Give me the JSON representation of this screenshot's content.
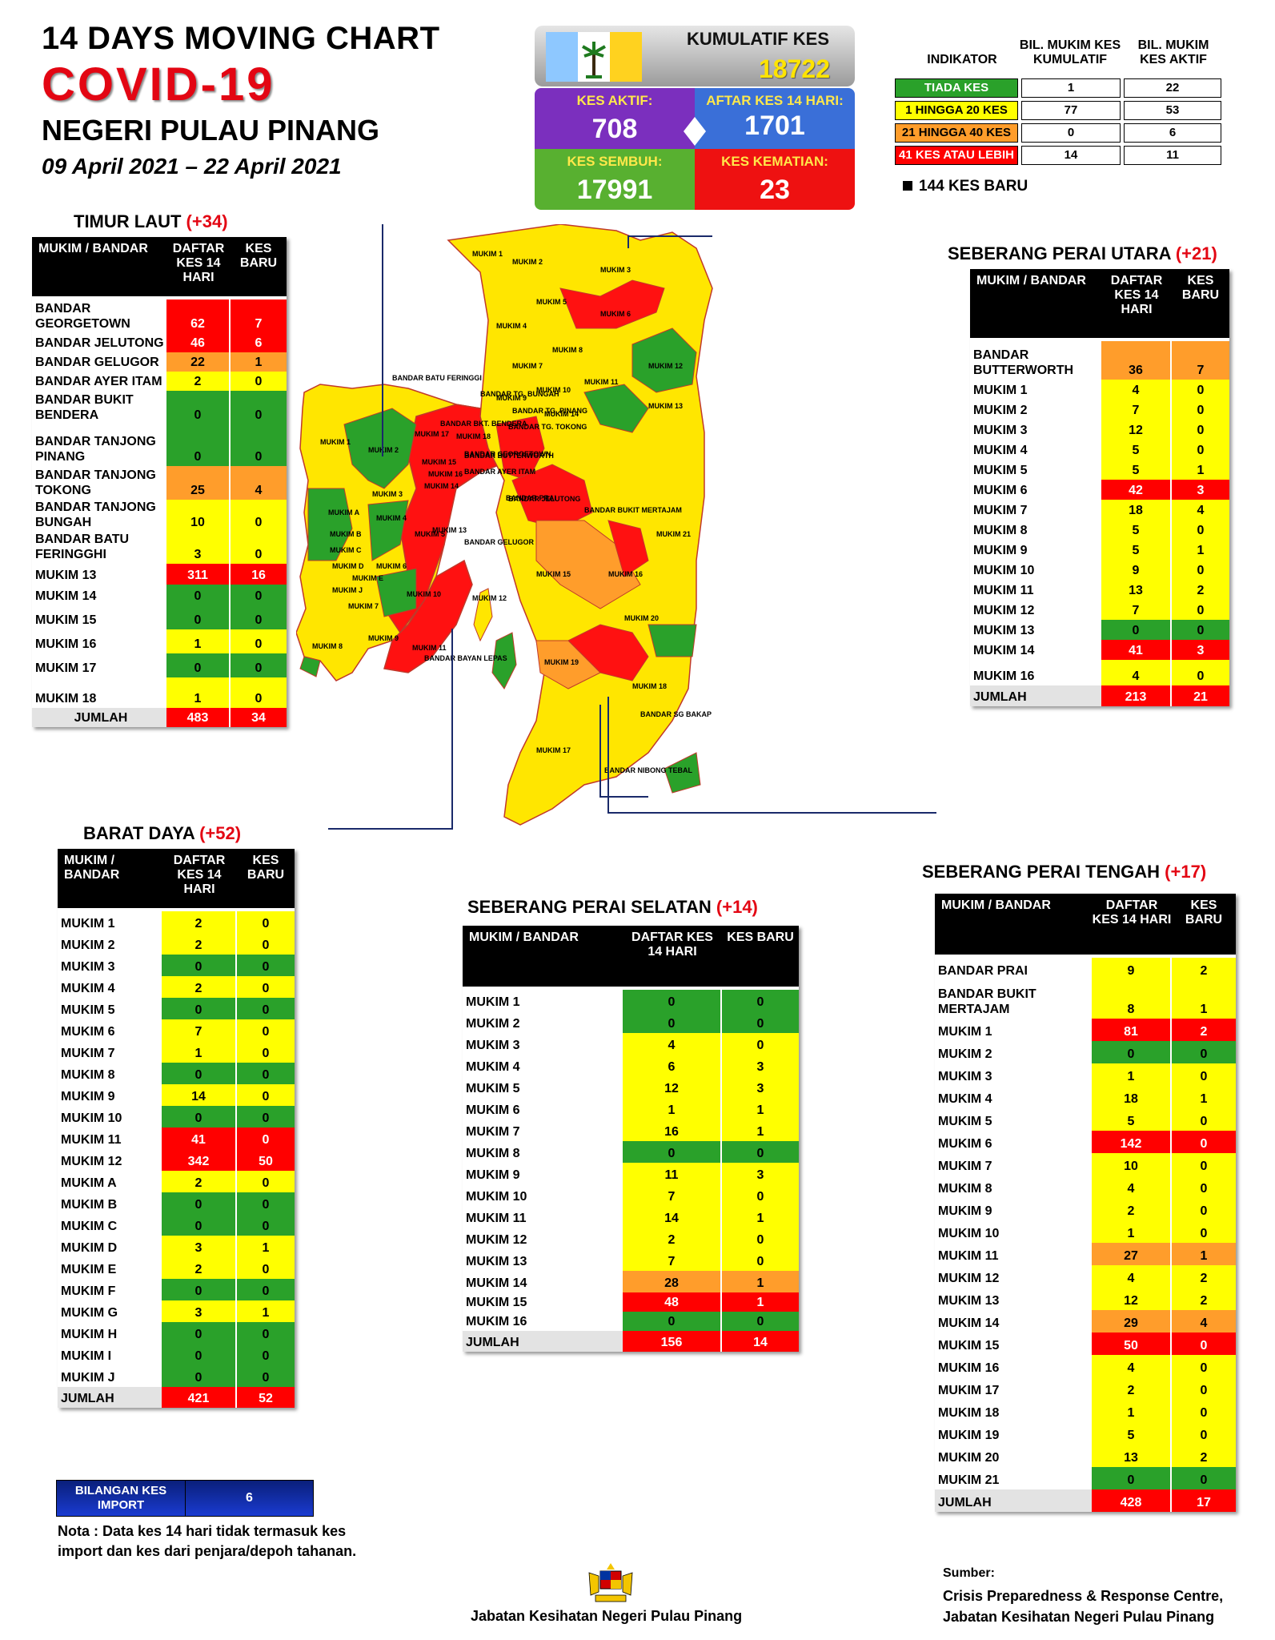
{
  "header": {
    "title": "14  DAYS MOVING CHART",
    "covid": "COVID-19",
    "state": "NEGERI PULAU PINANG",
    "dates": "09 April 2021 – 22 April 2021"
  },
  "summary": {
    "kumulatif_label": "KUMULATIF KES",
    "kumulatif_value": "18722",
    "aktif_label": "KES AKTIF:",
    "aktif_value": "708",
    "aftar_label": "AFTAR KES 14 HARI:",
    "aftar_value": "1701",
    "sembuh_label": "KES SEMBUH:",
    "sembuh_value": "17991",
    "kematian_label": "KES KEMATIAN:",
    "kematian_value": "23",
    "colors": {
      "aktif": "#7b2fbe",
      "aftar": "#3a6fd8",
      "sembuh": "#58b030",
      "kematian": "#ee1111"
    }
  },
  "indicator": {
    "h1": "INDIKATOR",
    "h2": "BIL. MUKIM KES KUMULATIF",
    "h3": "BIL. MUKIM KES AKTIF",
    "rows": [
      {
        "label": "TIADA KES",
        "kum": "1",
        "akt": "22",
        "color": "green"
      },
      {
        "label": "1 HINGGA 20 KES",
        "kum": "77",
        "akt": "53",
        "color": "yellow"
      },
      {
        "label": "21 HINGGA 40 KES",
        "kum": "0",
        "akt": "6",
        "color": "orange"
      },
      {
        "label": "41 KES ATAU LEBIH",
        "kum": "14",
        "akt": "11",
        "color": "red"
      }
    ],
    "new_cases": "144 KES BARU"
  },
  "headers": {
    "mukim_bandar": "MUKIM / BANDAR",
    "daftar": "DAFTAR KES 14 HARI",
    "baru": "KES BARU"
  },
  "tables": {
    "timur_laut": {
      "title": "TIMUR LAUT",
      "plus": "(+34)",
      "rows": [
        {
          "name": "BANDAR GEORGETOWN",
          "d": "62",
          "b": "7",
          "dc": "red",
          "bc": "red"
        },
        {
          "name": "BANDAR JELUTONG",
          "d": "46",
          "b": "6",
          "dc": "red",
          "bc": "red"
        },
        {
          "name": "BANDAR GELUGOR",
          "d": "22",
          "b": "1",
          "dc": "orange",
          "bc": "orange"
        },
        {
          "name": "BANDAR AYER ITAM",
          "d": "2",
          "b": "0",
          "dc": "yellow",
          "bc": "yellow"
        },
        {
          "name": "BANDAR BUKIT BENDERA",
          "d": "0",
          "b": "0",
          "dc": "green",
          "bc": "green"
        },
        {
          "name": "BANDAR TANJONG PINANG",
          "d": "0",
          "b": "0",
          "dc": "green",
          "bc": "green"
        },
        {
          "name": "BANDAR TANJONG TOKONG",
          "d": "25",
          "b": "4",
          "dc": "orange",
          "bc": "orange"
        },
        {
          "name": "BANDAR TANJONG BUNGAH",
          "d": "10",
          "b": "0",
          "dc": "yellow",
          "bc": "yellow"
        },
        {
          "name": "BANDAR BATU FERINGGHI",
          "d": "3",
          "b": "0",
          "dc": "yellow",
          "bc": "yellow"
        },
        {
          "name": "MUKIM 13",
          "d": "311",
          "b": "16",
          "dc": "red",
          "bc": "red"
        },
        {
          "name": "MUKIM 14",
          "d": "0",
          "b": "0",
          "dc": "green",
          "bc": "green"
        },
        {
          "name": "MUKIM 15",
          "d": "0",
          "b": "0",
          "dc": "green",
          "bc": "green"
        },
        {
          "name": "MUKIM 16",
          "d": "1",
          "b": "0",
          "dc": "yellow",
          "bc": "yellow"
        },
        {
          "name": "MUKIM 17",
          "d": "0",
          "b": "0",
          "dc": "green",
          "bc": "green"
        },
        {
          "name": "MUKIM 18",
          "d": "1",
          "b": "0",
          "dc": "yellow",
          "bc": "yellow"
        }
      ],
      "total_label": "JUMLAH",
      "total_d": "483",
      "total_b": "34"
    },
    "barat_daya": {
      "title": "BARAT DAYA",
      "plus": "(+52)",
      "rows": [
        {
          "name": "MUKIM 1",
          "d": "2",
          "b": "0",
          "dc": "yellow",
          "bc": "yellow"
        },
        {
          "name": "MUKIM 2",
          "d": "2",
          "b": "0",
          "dc": "yellow",
          "bc": "yellow"
        },
        {
          "name": "MUKIM 3",
          "d": "0",
          "b": "0",
          "dc": "green",
          "bc": "green"
        },
        {
          "name": "MUKIM 4",
          "d": "2",
          "b": "0",
          "dc": "yellow",
          "bc": "yellow"
        },
        {
          "name": "MUKIM 5",
          "d": "0",
          "b": "0",
          "dc": "green",
          "bc": "green"
        },
        {
          "name": "MUKIM 6",
          "d": "7",
          "b": "0",
          "dc": "yellow",
          "bc": "yellow"
        },
        {
          "name": "MUKIM 7",
          "d": "1",
          "b": "0",
          "dc": "yellow",
          "bc": "yellow"
        },
        {
          "name": "MUKIM 8",
          "d": "0",
          "b": "0",
          "dc": "green",
          "bc": "green"
        },
        {
          "name": "MUKIM 9",
          "d": "14",
          "b": "0",
          "dc": "yellow",
          "bc": "yellow"
        },
        {
          "name": "MUKIM 10",
          "d": "0",
          "b": "0",
          "dc": "green",
          "bc": "green"
        },
        {
          "name": "MUKIM 11",
          "d": "41",
          "b": "0",
          "dc": "red",
          "bc": "red"
        },
        {
          "name": "MUKIM 12",
          "d": "342",
          "b": "50",
          "dc": "red",
          "bc": "red"
        },
        {
          "name": "MUKIM A",
          "d": "2",
          "b": "0",
          "dc": "yellow",
          "bc": "yellow"
        },
        {
          "name": "MUKIM B",
          "d": "0",
          "b": "0",
          "dc": "green",
          "bc": "green"
        },
        {
          "name": "MUKIM C",
          "d": "0",
          "b": "0",
          "dc": "green",
          "bc": "green"
        },
        {
          "name": "MUKIM D",
          "d": "3",
          "b": "1",
          "dc": "yellow",
          "bc": "yellow"
        },
        {
          "name": "MUKIM E",
          "d": "2",
          "b": "0",
          "dc": "yellow",
          "bc": "yellow"
        },
        {
          "name": "MUKIM F",
          "d": "0",
          "b": "0",
          "dc": "green",
          "bc": "green"
        },
        {
          "name": "MUKIM G",
          "d": "3",
          "b": "1",
          "dc": "yellow",
          "bc": "yellow"
        },
        {
          "name": "MUKIM H",
          "d": "0",
          "b": "0",
          "dc": "green",
          "bc": "green"
        },
        {
          "name": "MUKIM I",
          "d": "0",
          "b": "0",
          "dc": "green",
          "bc": "green"
        },
        {
          "name": "MUKIM J",
          "d": "0",
          "b": "0",
          "dc": "green",
          "bc": "green"
        }
      ],
      "total_label": "JUMLAH",
      "total_d": "421",
      "total_b": "52"
    },
    "spu": {
      "title": "SEBERANG PERAI UTARA",
      "plus": "(+21)",
      "rows": [
        {
          "name": "BANDAR BUTTERWORTH",
          "d": "36",
          "b": "7",
          "dc": "orange",
          "bc": "orange"
        },
        {
          "name": "MUKIM 1",
          "d": "4",
          "b": "0",
          "dc": "yellow",
          "bc": "yellow"
        },
        {
          "name": "MUKIM 2",
          "d": "7",
          "b": "0",
          "dc": "yellow",
          "bc": "yellow"
        },
        {
          "name": "MUKIM 3",
          "d": "12",
          "b": "0",
          "dc": "yellow",
          "bc": "yellow"
        },
        {
          "name": "MUKIM 4",
          "d": "5",
          "b": "0",
          "dc": "yellow",
          "bc": "yellow"
        },
        {
          "name": "MUKIM 5",
          "d": "5",
          "b": "1",
          "dc": "yellow",
          "bc": "yellow"
        },
        {
          "name": "MUKIM 6",
          "d": "42",
          "b": "3",
          "dc": "red",
          "bc": "red"
        },
        {
          "name": "MUKIM 7",
          "d": "18",
          "b": "4",
          "dc": "yellow",
          "bc": "yellow"
        },
        {
          "name": "MUKIM 8",
          "d": "5",
          "b": "0",
          "dc": "yellow",
          "bc": "yellow"
        },
        {
          "name": "MUKIM 9",
          "d": "5",
          "b": "1",
          "dc": "yellow",
          "bc": "yellow"
        },
        {
          "name": "MUKIM 10",
          "d": "9",
          "b": "0",
          "dc": "yellow",
          "bc": "yellow"
        },
        {
          "name": "MUKIM 11",
          "d": "13",
          "b": "2",
          "dc": "yellow",
          "bc": "yellow"
        },
        {
          "name": "MUKIM 12",
          "d": "7",
          "b": "0",
          "dc": "yellow",
          "bc": "yellow"
        },
        {
          "name": "MUKIM 13",
          "d": "0",
          "b": "0",
          "dc": "green",
          "bc": "green"
        },
        {
          "name": "MUKIM 14",
          "d": "41",
          "b": "3",
          "dc": "red",
          "bc": "red"
        },
        {
          "name": "MUKIM 16",
          "d": "4",
          "b": "0",
          "dc": "yellow",
          "bc": "yellow"
        }
      ],
      "total_label": "JUMLAH",
      "total_d": "213",
      "total_b": "21"
    },
    "sps": {
      "title": "SEBERANG PERAI SELATAN",
      "plus": "(+14)",
      "rows": [
        {
          "name": "MUKIM 1",
          "d": "0",
          "b": "0",
          "dc": "green",
          "bc": "green"
        },
        {
          "name": "MUKIM 2",
          "d": "0",
          "b": "0",
          "dc": "green",
          "bc": "green"
        },
        {
          "name": "MUKIM 3",
          "d": "4",
          "b": "0",
          "dc": "yellow",
          "bc": "yellow"
        },
        {
          "name": "MUKIM 4",
          "d": "6",
          "b": "3",
          "dc": "yellow",
          "bc": "yellow"
        },
        {
          "name": "MUKIM 5",
          "d": "12",
          "b": "3",
          "dc": "yellow",
          "bc": "yellow"
        },
        {
          "name": "MUKIM 6",
          "d": "1",
          "b": "1",
          "dc": "yellow",
          "bc": "yellow"
        },
        {
          "name": "MUKIM 7",
          "d": "16",
          "b": "1",
          "dc": "yellow",
          "bc": "yellow"
        },
        {
          "name": "MUKIM 8",
          "d": "0",
          "b": "0",
          "dc": "green",
          "bc": "green"
        },
        {
          "name": "MUKIM 9",
          "d": "11",
          "b": "3",
          "dc": "yellow",
          "bc": "yellow"
        },
        {
          "name": "MUKIM 10",
          "d": "7",
          "b": "0",
          "dc": "yellow",
          "bc": "yellow"
        },
        {
          "name": "MUKIM 11",
          "d": "14",
          "b": "1",
          "dc": "yellow",
          "bc": "yellow"
        },
        {
          "name": "MUKIM 12",
          "d": "2",
          "b": "0",
          "dc": "yellow",
          "bc": "yellow"
        },
        {
          "name": "MUKIM 13",
          "d": "7",
          "b": "0",
          "dc": "yellow",
          "bc": "yellow"
        },
        {
          "name": "MUKIM 14",
          "d": "28",
          "b": "1",
          "dc": "orange",
          "bc": "orange"
        },
        {
          "name": "MUKIM 15",
          "d": "48",
          "b": "1",
          "dc": "red",
          "bc": "red"
        },
        {
          "name": "MUKIM 16",
          "d": "0",
          "b": "0",
          "dc": "green",
          "bc": "green"
        }
      ],
      "total_label": "JUMLAH",
      "total_d": "156",
      "total_b": "14"
    },
    "spt": {
      "title": "SEBERANG PERAI TENGAH",
      "plus": "(+17)",
      "rows": [
        {
          "name": "BANDAR PRAI",
          "d": "9",
          "b": "2",
          "dc": "yellow",
          "bc": "yellow"
        },
        {
          "name": "BANDAR BUKIT MERTAJAM",
          "d": "8",
          "b": "1",
          "dc": "yellow",
          "bc": "yellow"
        },
        {
          "name": "MUKIM 1",
          "d": "81",
          "b": "2",
          "dc": "red",
          "bc": "red"
        },
        {
          "name": "MUKIM 2",
          "d": "0",
          "b": "0",
          "dc": "green",
          "bc": "green"
        },
        {
          "name": "MUKIM 3",
          "d": "1",
          "b": "0",
          "dc": "yellow",
          "bc": "yellow"
        },
        {
          "name": "MUKIM 4",
          "d": "18",
          "b": "1",
          "dc": "yellow",
          "bc": "yellow"
        },
        {
          "name": "MUKIM 5",
          "d": "5",
          "b": "0",
          "dc": "yellow",
          "bc": "yellow"
        },
        {
          "name": "MUKIM 6",
          "d": "142",
          "b": "0",
          "dc": "red",
          "bc": "red"
        },
        {
          "name": "MUKIM 7",
          "d": "10",
          "b": "0",
          "dc": "yellow",
          "bc": "yellow"
        },
        {
          "name": "MUKIM 8",
          "d": "4",
          "b": "0",
          "dc": "yellow",
          "bc": "yellow"
        },
        {
          "name": "MUKIM 9",
          "d": "2",
          "b": "0",
          "dc": "yellow",
          "bc": "yellow"
        },
        {
          "name": "MUKIM 10",
          "d": "1",
          "b": "0",
          "dc": "yellow",
          "bc": "yellow"
        },
        {
          "name": "MUKIM 11",
          "d": "27",
          "b": "1",
          "dc": "orange",
          "bc": "orange"
        },
        {
          "name": "MUKIM 12",
          "d": "4",
          "b": "2",
          "dc": "yellow",
          "bc": "yellow"
        },
        {
          "name": "MUKIM 13",
          "d": "12",
          "b": "2",
          "dc": "yellow",
          "bc": "yellow"
        },
        {
          "name": "MUKIM 14",
          "d": "29",
          "b": "4",
          "dc": "orange",
          "bc": "orange"
        },
        {
          "name": "MUKIM 15",
          "d": "50",
          "b": "0",
          "dc": "red",
          "bc": "red"
        },
        {
          "name": "MUKIM 16",
          "d": "4",
          "b": "0",
          "dc": "yellow",
          "bc": "yellow"
        },
        {
          "name": "MUKIM 17",
          "d": "2",
          "b": "0",
          "dc": "yellow",
          "bc": "yellow"
        },
        {
          "name": "MUKIM 18",
          "d": "1",
          "b": "0",
          "dc": "yellow",
          "bc": "yellow"
        },
        {
          "name": "MUKIM 19",
          "d": "5",
          "b": "0",
          "dc": "yellow",
          "bc": "yellow"
        },
        {
          "name": "MUKIM 20",
          "d": "13",
          "b": "2",
          "dc": "yellow",
          "bc": "yellow"
        },
        {
          "name": "MUKIM 21",
          "d": "0",
          "b": "0",
          "dc": "green",
          "bc": "green"
        }
      ],
      "total_label": "JUMLAH",
      "total_d": "428",
      "total_b": "17"
    }
  },
  "map_labels": {
    "island": [
      "BANDAR BATU FERINGGI",
      "BANDAR TG. BUNGAH",
      "BANDAR TG. PINANG",
      "BANDAR TG. TOKONG",
      "BANDAR BKT. BENDERA",
      "BANDAR GEORGETOWN",
      "BANDAR AYER ITAM",
      "BANDAR JELUTONG",
      "BANDAR GELUGOR",
      "MUKIM 1",
      "MUKIM 2",
      "MUKIM 3",
      "MUKIM 4",
      "MUKIM 5",
      "MUKIM 6",
      "MUKIM 7",
      "MUKIM 8",
      "MUKIM 9",
      "MUKIM 10",
      "MUKIM 11",
      "MUKIM 12",
      "MUKIM 13",
      "MUKIM 14",
      "MUKIM 15",
      "MUKIM 16",
      "MUKIM 17",
      "MUKIM 18",
      "MUKIM A",
      "MUKIM B",
      "MUKIM C",
      "MUKIM D",
      "MUKIM E",
      "MUKIM J",
      "BANDAR BAYAN LEPAS"
    ],
    "mainland": [
      "BANDAR BUTTERWORTH",
      "BANDAR PRAI",
      "BANDAR BUKIT MERTAJAM",
      "BANDAR SG BAKAP",
      "BANDAR NIBONG TEBAL",
      "MUKIM 1",
      "MUKIM 2",
      "MUKIM 3",
      "MUKIM 4",
      "MUKIM 5",
      "MUKIM 6",
      "MUKIM 7",
      "MUKIM 8",
      "MUKIM 9",
      "MUKIM 10",
      "MUKIM 11",
      "MUKIM 12",
      "MUKIM 13",
      "MUKIM 14",
      "MUKIM 15",
      "MUKIM 16",
      "MUKIM 17",
      "MUKIM 18",
      "MUKIM 19",
      "MUKIM 20",
      "MUKIM 21"
    ]
  },
  "footer": {
    "import_label": "BILANGAN KES IMPORT",
    "import_value": "6",
    "nota": "Nota : Data kes 14 hari tidak termasuk kes import dan kes dari penjara/depoh tahanan.",
    "jabatan": "Jabatan Kesihatan Negeri Pulau Pinang",
    "sumber_label": "Sumber:",
    "sumber_line1": "Crisis Preparedness & Response Centre,",
    "sumber_line2": "Jabatan Kesihatan Negeri Pulau Pinang"
  }
}
